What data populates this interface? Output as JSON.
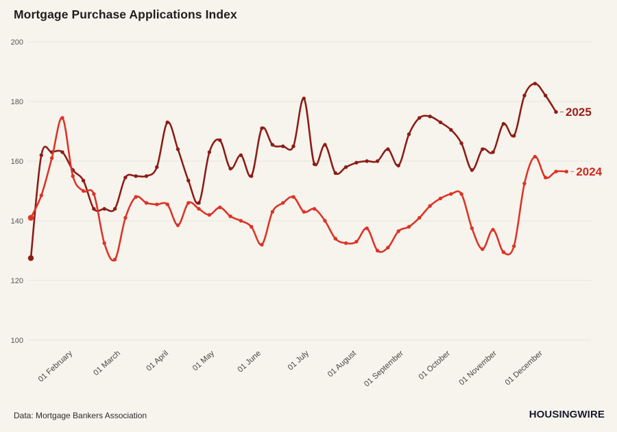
{
  "header": {
    "title": "Mortgage Purchase Applications Index"
  },
  "footer": {
    "source": "Data: Mortgage Bankers Association",
    "brand": "HOUSINGWIRE"
  },
  "colors": {
    "background": "#f6f4ed",
    "grid": "#e8e5dc",
    "title_text": "#1f1e1b",
    "y_axis_text": "#56544f",
    "x_axis_text": "#47453f",
    "series_2025": "#8c1d16",
    "series_2024": "#dd3327",
    "label_2025": "#9c1d15",
    "label_2024": "#d2281c",
    "brand_text": "#191930"
  },
  "chart_data": {
    "type": "line",
    "title": "Mortgage Purchase Applications Index",
    "x_unit": "week",
    "x_range_note": "weekly data points, mid-January through late December",
    "x_tick_labels": [
      "01 February",
      "01 March",
      "01 April",
      "01 May",
      "01 June",
      "01 July",
      "01 August",
      "01 September",
      "01 October",
      "01 November",
      "01 December"
    ],
    "ylim": [
      100,
      200
    ],
    "yticks": [
      100,
      120,
      140,
      160,
      180,
      200
    ],
    "grid": "horizontal-only",
    "legend": "series labels at line ends, right side",
    "series": [
      {
        "name": "2025",
        "color": "#8c1d16",
        "label_color": "#9c1d15",
        "values": [
          127.5,
          162,
          163,
          163,
          157,
          153.5,
          144,
          144,
          144,
          154.5,
          155,
          155,
          158,
          173,
          164,
          153.5,
          146,
          163,
          167,
          157.5,
          162,
          155,
          171,
          165.5,
          165,
          165,
          181,
          159,
          165.5,
          156,
          158,
          159.5,
          160,
          160,
          164,
          158.5,
          169,
          174.5,
          175,
          173,
          170.5,
          166,
          157,
          164,
          163,
          172.5,
          168.5,
          182,
          186,
          182,
          176.5
        ]
      },
      {
        "name": "2024",
        "color": "#dd3327",
        "label_color": "#d2281c",
        "values": [
          141,
          148.5,
          161,
          174.5,
          155,
          150,
          149,
          132.5,
          127,
          141,
          148,
          146,
          145.5,
          145.5,
          138.5,
          146,
          144,
          142,
          144.5,
          141.5,
          140,
          138,
          132,
          143,
          146,
          148,
          143,
          144,
          140,
          134,
          132.5,
          133,
          137.5,
          130,
          131,
          136.5,
          138,
          141,
          145,
          147.5,
          149,
          149,
          137.5,
          130.5,
          137,
          129.5,
          131.5,
          152.5,
          161.5,
          154.5,
          156.5,
          156.5
        ]
      }
    ]
  }
}
